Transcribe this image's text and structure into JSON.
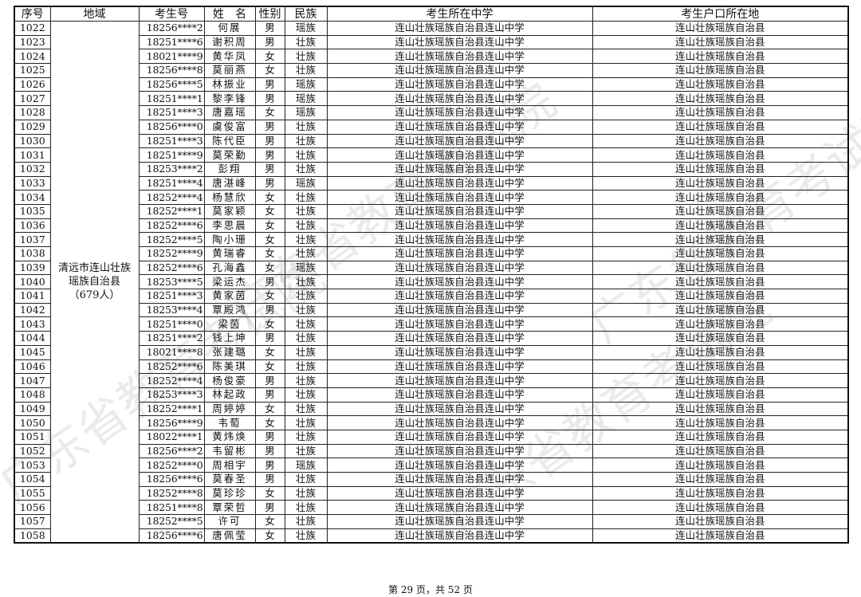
{
  "headers": [
    "序号",
    "地域",
    "考生号",
    "姓　名",
    "性别",
    "民族",
    "考生所在中学",
    "考生户口所在地"
  ],
  "region": "清远市连山壮族瑶族自治县（679人）",
  "school": "连山壮族瑶族自治县连山中学",
  "hukou": "连山壮族瑶族自治县",
  "rows": [
    [
      "1022",
      "18256****2",
      "何展",
      "男",
      "瑶族"
    ],
    [
      "1023",
      "18251****6",
      "谢积周",
      "男",
      "壮族"
    ],
    [
      "1024",
      "18021****9",
      "黄华凤",
      "女",
      "壮族"
    ],
    [
      "1025",
      "18256****8",
      "莫丽燕",
      "女",
      "壮族"
    ],
    [
      "1026",
      "18256****5",
      "林振业",
      "男",
      "瑶族"
    ],
    [
      "1027",
      "18251****1",
      "黎李锋",
      "男",
      "瑶族"
    ],
    [
      "1028",
      "18251****3",
      "唐嘉瑶",
      "女",
      "瑶族"
    ],
    [
      "1029",
      "18256****0",
      "虞俊富",
      "男",
      "壮族"
    ],
    [
      "1030",
      "18251****3",
      "陈代臣",
      "男",
      "壮族"
    ],
    [
      "1031",
      "18251****9",
      "莫荣勤",
      "男",
      "壮族"
    ],
    [
      "1032",
      "18253****2",
      "彭翔",
      "男",
      "壮族"
    ],
    [
      "1033",
      "18251****4",
      "唐湛峰",
      "男",
      "瑶族"
    ],
    [
      "1034",
      "18252****4",
      "杨慧欣",
      "女",
      "壮族"
    ],
    [
      "1035",
      "18252****1",
      "莫家颖",
      "女",
      "壮族"
    ],
    [
      "1036",
      "18252****6",
      "李思晨",
      "女",
      "壮族"
    ],
    [
      "1037",
      "18252****5",
      "陶小珊",
      "女",
      "壮族"
    ],
    [
      "1038",
      "18252****9",
      "黄瑞睿",
      "女",
      "壮族"
    ],
    [
      "1039",
      "18252****6",
      "孔海鑫",
      "女",
      "瑶族"
    ],
    [
      "1040",
      "18253****5",
      "梁运杰",
      "男",
      "壮族"
    ],
    [
      "1041",
      "18251****3",
      "黄家茵",
      "女",
      "壮族"
    ],
    [
      "1042",
      "18253****4",
      "覃殿鸿",
      "男",
      "壮族"
    ],
    [
      "1043",
      "18251****0",
      "梁茵",
      "女",
      "壮族"
    ],
    [
      "1044",
      "18251****2",
      "钱上坤",
      "男",
      "壮族"
    ],
    [
      "1045",
      "18021****8",
      "张建璐",
      "女",
      "壮族"
    ],
    [
      "1046",
      "18252****6",
      "陈美琪",
      "女",
      "壮族"
    ],
    [
      "1047",
      "18252****4",
      "杨俊豪",
      "男",
      "壮族"
    ],
    [
      "1048",
      "18253****3",
      "林起政",
      "男",
      "壮族"
    ],
    [
      "1049",
      "18252****1",
      "周婷婷",
      "女",
      "壮族"
    ],
    [
      "1050",
      "18256****9",
      "韦萄",
      "女",
      "壮族"
    ],
    [
      "1051",
      "18022****1",
      "黄炜焕",
      "男",
      "壮族"
    ],
    [
      "1052",
      "18256****2",
      "韦留彬",
      "男",
      "壮族"
    ],
    [
      "1053",
      "18252****0",
      "周相宇",
      "男",
      "瑶族"
    ],
    [
      "1054",
      "18256****6",
      "莫春圣",
      "男",
      "壮族"
    ],
    [
      "1055",
      "18252****8",
      "莫珍珍",
      "女",
      "壮族"
    ],
    [
      "1056",
      "18251****8",
      "覃荣哲",
      "男",
      "壮族"
    ],
    [
      "1057",
      "18252****5",
      "许可",
      "女",
      "壮族"
    ],
    [
      "1058",
      "18256****6",
      "唐佩莹",
      "女",
      "壮族"
    ]
  ],
  "footer": "第 29 页，共 52 页",
  "watermark": "广东省教育考试院"
}
